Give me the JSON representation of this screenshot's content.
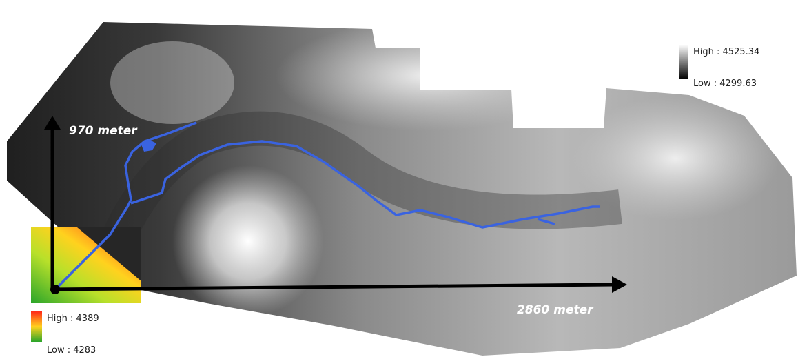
{
  "axes": {
    "vertical": "970 meter",
    "horizontal": "2860 meter"
  },
  "legends": {
    "elevation": {
      "high": "High : 4525.34",
      "low": "Low : 4299.63"
    },
    "inset": {
      "high": "High : 4389",
      "low": "Low : 4283"
    }
  }
}
